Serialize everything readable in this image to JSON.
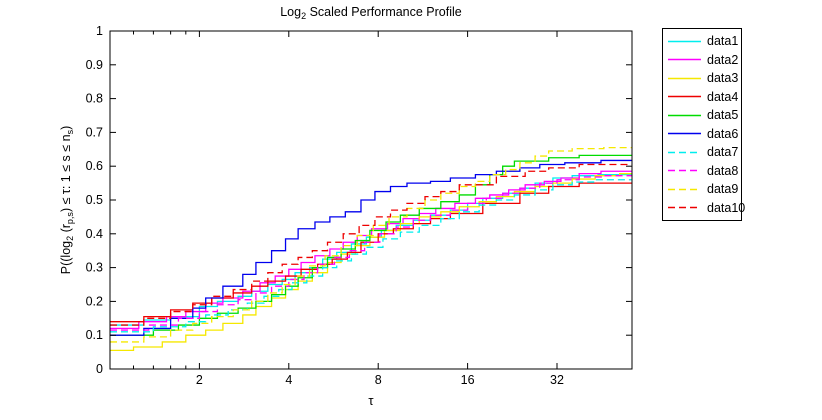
{
  "title": {
    "prefix": "Log",
    "sub": "2",
    "suffix": " Scaled Performance Profile"
  },
  "xlabel": "τ",
  "ylabel": {
    "p1": "P((log",
    "sub1": "2",
    "p2": " (r",
    "sub2": "p,s",
    "p3": ") ≤ τ: 1 ≤ s ≤ n",
    "sub3": "s",
    "p4": ")"
  },
  "axis": {
    "x_tick_labels": [
      "2",
      "4",
      "8",
      "16",
      "32"
    ],
    "x_ticks": [
      2,
      4,
      8,
      16,
      32
    ],
    "x_minor_ticks": [
      1.2,
      1.4,
      1.6,
      1.8
    ],
    "y_tick_labels": [
      "0",
      "0.1",
      "0.2",
      "0.3",
      "0.4",
      "0.5",
      "0.6",
      "0.7",
      "0.8",
      "0.9",
      "1"
    ],
    "y_ticks": [
      0,
      0.1,
      0.2,
      0.3,
      0.4,
      0.5,
      0.6,
      0.7,
      0.8,
      0.9,
      1
    ]
  },
  "chart_data": {
    "type": "line",
    "subtype": "staircase-performance-profile",
    "x_scale": "log2",
    "xlim": [
      1,
      57.2
    ],
    "ylim": [
      0,
      1
    ],
    "grid": false,
    "legend_position": "outside-right",
    "series": [
      {
        "name": "data1",
        "color": "#00eeee",
        "line_style": "solid",
        "steps": [
          [
            1,
            0.13
          ],
          [
            1.3,
            0.145
          ],
          [
            1.6,
            0.155
          ],
          [
            2,
            0.185
          ],
          [
            2.3,
            0.2
          ],
          [
            2.7,
            0.215
          ],
          [
            3,
            0.23
          ],
          [
            3.4,
            0.25
          ],
          [
            3.8,
            0.265
          ],
          [
            4.2,
            0.285
          ],
          [
            4.7,
            0.3
          ],
          [
            5.2,
            0.325
          ],
          [
            5.8,
            0.345
          ],
          [
            6.5,
            0.37
          ],
          [
            7.3,
            0.39
          ],
          [
            8.2,
            0.41
          ],
          [
            9.2,
            0.425
          ],
          [
            10.5,
            0.44
          ],
          [
            12,
            0.455
          ],
          [
            14,
            0.47
          ],
          [
            16,
            0.49
          ],
          [
            18,
            0.505
          ],
          [
            21,
            0.52
          ],
          [
            24,
            0.535
          ],
          [
            27,
            0.55
          ],
          [
            31,
            0.565
          ],
          [
            36,
            0.572
          ],
          [
            44,
            0.575
          ]
        ]
      },
      {
        "name": "data2",
        "color": "#ff00ff",
        "line_style": "solid",
        "steps": [
          [
            1,
            0.12
          ],
          [
            1.25,
            0.14
          ],
          [
            1.55,
            0.155
          ],
          [
            1.8,
            0.17
          ],
          [
            2.1,
            0.195
          ],
          [
            2.4,
            0.21
          ],
          [
            2.8,
            0.23
          ],
          [
            3.2,
            0.255
          ],
          [
            3.6,
            0.275
          ],
          [
            4,
            0.295
          ],
          [
            4.4,
            0.315
          ],
          [
            4.9,
            0.335
          ],
          [
            5.5,
            0.355
          ],
          [
            6.1,
            0.375
          ],
          [
            6.8,
            0.395
          ],
          [
            7.6,
            0.415
          ],
          [
            8.6,
            0.43
          ],
          [
            9.7,
            0.445
          ],
          [
            11,
            0.46
          ],
          [
            12.5,
            0.475
          ],
          [
            14.5,
            0.49
          ],
          [
            17,
            0.505
          ],
          [
            19,
            0.515
          ],
          [
            22,
            0.53
          ],
          [
            25,
            0.545
          ],
          [
            29,
            0.555
          ],
          [
            33,
            0.565
          ],
          [
            38,
            0.578
          ],
          [
            45,
            0.585
          ]
        ]
      },
      {
        "name": "data3",
        "color": "#f5e800",
        "line_style": "solid",
        "steps": [
          [
            1,
            0.055
          ],
          [
            1.2,
            0.065
          ],
          [
            1.5,
            0.08
          ],
          [
            1.8,
            0.1
          ],
          [
            2.1,
            0.115
          ],
          [
            2.4,
            0.135
          ],
          [
            2.8,
            0.16
          ],
          [
            3.1,
            0.185
          ],
          [
            3.5,
            0.21
          ],
          [
            3.9,
            0.235
          ],
          [
            4.3,
            0.26
          ],
          [
            4.8,
            0.285
          ],
          [
            5.4,
            0.315
          ],
          [
            6,
            0.34
          ],
          [
            6.7,
            0.365
          ],
          [
            7.5,
            0.39
          ],
          [
            8.4,
            0.41
          ],
          [
            9.5,
            0.43
          ],
          [
            11,
            0.45
          ],
          [
            13,
            0.465
          ],
          [
            15,
            0.48
          ],
          [
            17.5,
            0.495
          ],
          [
            20,
            0.51
          ],
          [
            23,
            0.525
          ],
          [
            27,
            0.54
          ],
          [
            31,
            0.55
          ],
          [
            36,
            0.562
          ],
          [
            43,
            0.572
          ],
          [
            52,
            0.578
          ]
        ]
      },
      {
        "name": "data4",
        "color": "#ee0000",
        "line_style": "solid",
        "steps": [
          [
            1,
            0.14
          ],
          [
            1.3,
            0.155
          ],
          [
            1.6,
            0.175
          ],
          [
            1.9,
            0.195
          ],
          [
            2.2,
            0.21
          ],
          [
            2.6,
            0.225
          ],
          [
            3,
            0.245
          ],
          [
            3.4,
            0.26
          ],
          [
            3.9,
            0.275
          ],
          [
            4.4,
            0.295
          ],
          [
            5,
            0.31
          ],
          [
            5.6,
            0.325
          ],
          [
            6.3,
            0.345
          ],
          [
            7,
            0.375
          ],
          [
            8,
            0.4
          ],
          [
            9,
            0.415
          ],
          [
            10.5,
            0.43
          ],
          [
            12,
            0.445
          ],
          [
            14,
            0.46
          ],
          [
            18,
            0.49
          ],
          [
            24,
            0.52
          ],
          [
            30,
            0.54
          ],
          [
            38,
            0.55
          ]
        ]
      },
      {
        "name": "data5",
        "color": "#00dc00",
        "line_style": "solid",
        "steps": [
          [
            1,
            0.1
          ],
          [
            1.4,
            0.115
          ],
          [
            1.7,
            0.13
          ],
          [
            2,
            0.15
          ],
          [
            2.3,
            0.165
          ],
          [
            2.7,
            0.18
          ],
          [
            3.1,
            0.2
          ],
          [
            3.5,
            0.22
          ],
          [
            3.9,
            0.245
          ],
          [
            4.3,
            0.27
          ],
          [
            4.8,
            0.3
          ],
          [
            5.4,
            0.33
          ],
          [
            6,
            0.355
          ],
          [
            6.7,
            0.38
          ],
          [
            7.5,
            0.41
          ],
          [
            8.5,
            0.435
          ],
          [
            9.5,
            0.455
          ],
          [
            11,
            0.475
          ],
          [
            13,
            0.495
          ],
          [
            15,
            0.515
          ],
          [
            17,
            0.545
          ],
          [
            19,
            0.575
          ],
          [
            21,
            0.6
          ],
          [
            23,
            0.615
          ],
          [
            30,
            0.625
          ],
          [
            38,
            0.632
          ]
        ]
      },
      {
        "name": "data6",
        "color": "#0000ee",
        "line_style": "solid",
        "steps": [
          [
            1,
            0.1
          ],
          [
            1.3,
            0.12
          ],
          [
            1.6,
            0.15
          ],
          [
            1.9,
            0.18
          ],
          [
            2.1,
            0.21
          ],
          [
            2.4,
            0.245
          ],
          [
            2.8,
            0.28
          ],
          [
            3.1,
            0.315
          ],
          [
            3.5,
            0.35
          ],
          [
            3.9,
            0.385
          ],
          [
            4.3,
            0.415
          ],
          [
            4.9,
            0.435
          ],
          [
            5.5,
            0.45
          ],
          [
            6.2,
            0.465
          ],
          [
            7,
            0.5
          ],
          [
            7.8,
            0.525
          ],
          [
            8.8,
            0.54
          ],
          [
            10,
            0.55
          ],
          [
            12,
            0.555
          ],
          [
            14,
            0.565
          ],
          [
            17,
            0.575
          ],
          [
            20,
            0.585
          ],
          [
            24,
            0.595
          ],
          [
            28,
            0.605
          ],
          [
            34,
            0.61
          ],
          [
            45,
            0.617
          ]
        ]
      },
      {
        "name": "data7",
        "color": "#00eeee",
        "line_style": "dashed",
        "steps": [
          [
            1,
            0.11
          ],
          [
            1.4,
            0.125
          ],
          [
            1.8,
            0.14
          ],
          [
            2.1,
            0.16
          ],
          [
            2.5,
            0.175
          ],
          [
            2.9,
            0.195
          ],
          [
            3.3,
            0.215
          ],
          [
            3.7,
            0.235
          ],
          [
            4.1,
            0.255
          ],
          [
            4.6,
            0.275
          ],
          [
            5.2,
            0.3
          ],
          [
            5.8,
            0.32
          ],
          [
            6.5,
            0.34
          ],
          [
            7.3,
            0.36
          ],
          [
            8.3,
            0.385
          ],
          [
            9.5,
            0.405
          ],
          [
            11,
            0.425
          ],
          [
            13,
            0.445
          ],
          [
            15,
            0.465
          ],
          [
            17.5,
            0.485
          ],
          [
            20,
            0.5
          ],
          [
            23,
            0.515
          ],
          [
            27,
            0.53
          ],
          [
            31,
            0.545
          ],
          [
            36,
            0.553
          ],
          [
            43,
            0.56
          ]
        ]
      },
      {
        "name": "data8",
        "color": "#ff00ff",
        "line_style": "dashed",
        "steps": [
          [
            1,
            0.115
          ],
          [
            1.35,
            0.13
          ],
          [
            1.7,
            0.15
          ],
          [
            2,
            0.17
          ],
          [
            2.3,
            0.19
          ],
          [
            2.7,
            0.205
          ],
          [
            3.1,
            0.225
          ],
          [
            3.5,
            0.245
          ],
          [
            4,
            0.265
          ],
          [
            4.5,
            0.285
          ],
          [
            5,
            0.31
          ],
          [
            5.7,
            0.33
          ],
          [
            6.4,
            0.35
          ],
          [
            7.2,
            0.375
          ],
          [
            8.1,
            0.4
          ],
          [
            9.2,
            0.42
          ],
          [
            10.5,
            0.44
          ],
          [
            12,
            0.455
          ],
          [
            14,
            0.47
          ],
          [
            16,
            0.49
          ],
          [
            18.5,
            0.505
          ],
          [
            21,
            0.52
          ],
          [
            24,
            0.535
          ],
          [
            28,
            0.55
          ],
          [
            32,
            0.56
          ],
          [
            38,
            0.568
          ],
          [
            46,
            0.572
          ]
        ]
      },
      {
        "name": "data9",
        "color": "#f5e800",
        "line_style": "dashed",
        "steps": [
          [
            1,
            0.08
          ],
          [
            1.3,
            0.095
          ],
          [
            1.6,
            0.115
          ],
          [
            1.9,
            0.135
          ],
          [
            2.2,
            0.155
          ],
          [
            2.6,
            0.175
          ],
          [
            3,
            0.2
          ],
          [
            3.4,
            0.225
          ],
          [
            3.8,
            0.25
          ],
          [
            4.2,
            0.275
          ],
          [
            4.7,
            0.305
          ],
          [
            5.3,
            0.335
          ],
          [
            6,
            0.365
          ],
          [
            6.8,
            0.395
          ],
          [
            7.7,
            0.425
          ],
          [
            8.7,
            0.45
          ],
          [
            10,
            0.475
          ],
          [
            11.5,
            0.5
          ],
          [
            13,
            0.52
          ],
          [
            15,
            0.54
          ],
          [
            17,
            0.555
          ],
          [
            19,
            0.575
          ],
          [
            21.5,
            0.59
          ],
          [
            24,
            0.61
          ],
          [
            27,
            0.63
          ],
          [
            30,
            0.645
          ],
          [
            36,
            0.652
          ],
          [
            46,
            0.655
          ]
        ]
      },
      {
        "name": "data10",
        "color": "#ee0000",
        "line_style": "dashed",
        "steps": [
          [
            1,
            0.13
          ],
          [
            1.3,
            0.15
          ],
          [
            1.6,
            0.17
          ],
          [
            1.9,
            0.19
          ],
          [
            2.2,
            0.215
          ],
          [
            2.6,
            0.235
          ],
          [
            3,
            0.26
          ],
          [
            3.4,
            0.285
          ],
          [
            3.8,
            0.31
          ],
          [
            4.3,
            0.33
          ],
          [
            4.8,
            0.35
          ],
          [
            5.4,
            0.375
          ],
          [
            6.1,
            0.4
          ],
          [
            6.9,
            0.425
          ],
          [
            7.8,
            0.45
          ],
          [
            8.8,
            0.47
          ],
          [
            10,
            0.49
          ],
          [
            11.5,
            0.51
          ],
          [
            13,
            0.525
          ],
          [
            15,
            0.545
          ],
          [
            20,
            0.57
          ],
          [
            25,
            0.585
          ],
          [
            30,
            0.595
          ],
          [
            38,
            0.605
          ]
        ]
      }
    ]
  }
}
